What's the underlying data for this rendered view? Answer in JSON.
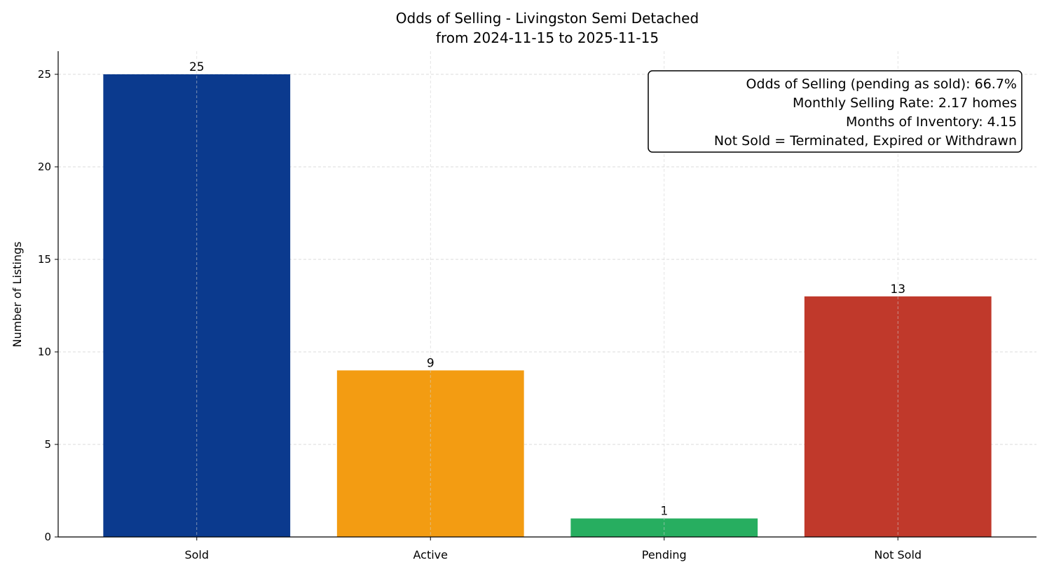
{
  "chart_data": {
    "type": "bar",
    "title": "Odds of Selling - Livingston Semi Detached",
    "subtitle": "from 2024-11-15 to 2025-11-15",
    "xlabel": "",
    "ylabel": "Number of Listings",
    "categories": [
      "Sold",
      "Active",
      "Pending",
      "Not Sold"
    ],
    "values": [
      25,
      9,
      1,
      13
    ],
    "colors": [
      "#0b3a8e",
      "#f39c12",
      "#27ae60",
      "#c0392b"
    ],
    "ylim": [
      0,
      26.25
    ],
    "yticks": [
      0,
      5,
      10,
      15,
      20,
      25
    ],
    "grid": true,
    "data_labels": [
      "25",
      "9",
      "1",
      "13"
    ],
    "annotation": [
      "Odds of Selling (pending as sold): 66.7%",
      "Monthly Selling Rate: 2.17 homes",
      "Months of Inventory: 4.15",
      "Not Sold = Terminated, Expired or Withdrawn"
    ],
    "annotation_placement": "top-right"
  }
}
